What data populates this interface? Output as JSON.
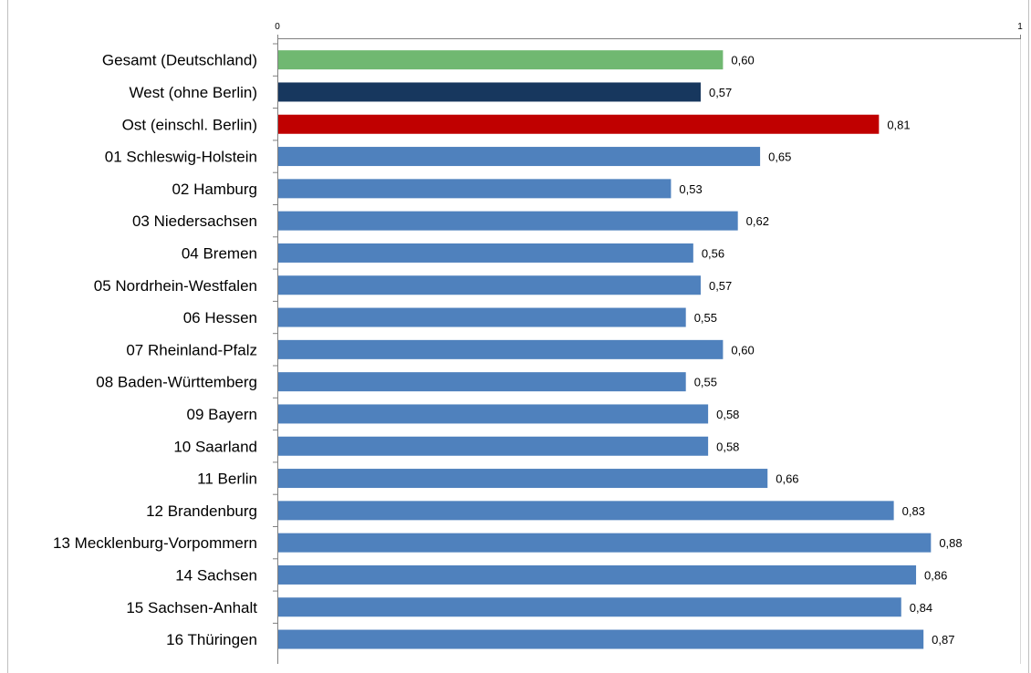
{
  "chart_data": {
    "type": "bar",
    "orientation": "horizontal",
    "title": "",
    "xlabel": "",
    "ylabel": "",
    "xlim": [
      0,
      1
    ],
    "x_ticks": [
      "0",
      "1"
    ],
    "grid": false,
    "legend": "none",
    "categories": [
      "Gesamt (Deutschland)",
      "West (ohne Berlin)",
      "Ost (einschl. Berlin)",
      "01 Schleswig-Holstein",
      "02 Hamburg",
      "03 Niedersachsen",
      "04 Bremen",
      "05 Nordrhein-Westfalen",
      "06 Hessen",
      "07 Rheinland-Pfalz",
      "08 Baden-Württemberg",
      "09 Bayern",
      "10 Saarland",
      "11 Berlin",
      "12 Brandenburg",
      "13 Mecklenburg-Vorpommern",
      "14 Sachsen",
      "15 Sachsen-Anhalt",
      "16 Thüringen"
    ],
    "values": [
      0.6,
      0.57,
      0.81,
      0.65,
      0.53,
      0.62,
      0.56,
      0.57,
      0.55,
      0.6,
      0.55,
      0.58,
      0.58,
      0.66,
      0.83,
      0.88,
      0.86,
      0.84,
      0.87
    ],
    "value_labels": [
      "0,60",
      "0,57",
      "0,81",
      "0,65",
      "0,53",
      "0,62",
      "0,56",
      "0,57",
      "0,55",
      "0,60",
      "0,55",
      "0,58",
      "0,58",
      "0,66",
      "0,83",
      "0,88",
      "0,86",
      "0,84",
      "0,87"
    ],
    "bar_colors": [
      "#70b871",
      "#17375e",
      "#c00000",
      "#4f81bd",
      "#4f81bd",
      "#4f81bd",
      "#4f81bd",
      "#4f81bd",
      "#4f81bd",
      "#4f81bd",
      "#4f81bd",
      "#4f81bd",
      "#4f81bd",
      "#4f81bd",
      "#4f81bd",
      "#4f81bd",
      "#4f81bd",
      "#4f81bd",
      "#4f81bd"
    ],
    "axis_color": "#808080"
  }
}
